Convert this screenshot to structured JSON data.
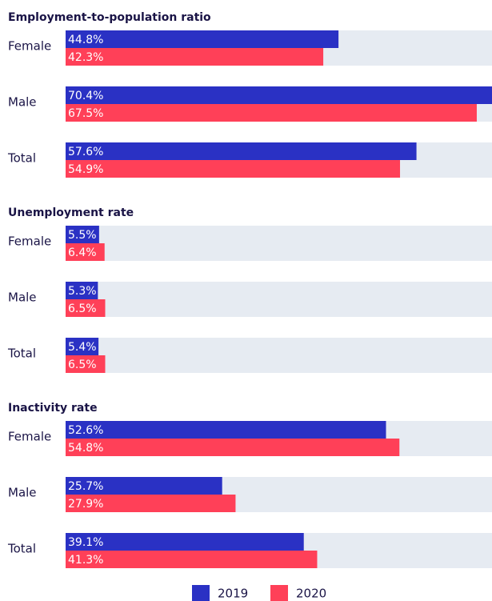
{
  "legend": [
    {
      "name": "2019",
      "color": "#2a31c4"
    },
    {
      "name": "2020",
      "color": "#ff4058"
    }
  ],
  "chart_data": [
    {
      "type": "bar",
      "title": "Employment-to-population ratio",
      "categories": [
        "Female",
        "Male",
        "Total"
      ],
      "xlim": [
        0,
        70
      ],
      "series": [
        {
          "values": [
            44.8,
            70.4,
            57.6
          ],
          "value_labels": [
            "44.8%",
            "70.4%",
            "57.6%"
          ]
        },
        {
          "values": [
            42.3,
            67.5,
            54.9
          ],
          "value_labels": [
            "42.3%",
            "67.5%",
            "54.9%"
          ]
        }
      ]
    },
    {
      "type": "bar",
      "title": "Unemployment rate",
      "categories": [
        "Female",
        "Male",
        "Total"
      ],
      "xlim": [
        0,
        70
      ],
      "series": [
        {
          "values": [
            5.5,
            5.3,
            5.4
          ],
          "value_labels": [
            "5.5%",
            "5.3%",
            "5.4%"
          ]
        },
        {
          "values": [
            6.4,
            6.5,
            6.5
          ],
          "value_labels": [
            "6.4%",
            "6.5%",
            "6.5%"
          ]
        }
      ]
    },
    {
      "type": "bar",
      "title": "Inactivity rate",
      "categories": [
        "Female",
        "Male",
        "Total"
      ],
      "xlim": [
        0,
        70
      ],
      "series": [
        {
          "values": [
            52.6,
            25.7,
            39.1
          ],
          "value_labels": [
            "52.6%",
            "25.7%",
            "39.1%"
          ]
        },
        {
          "values": [
            54.8,
            27.9,
            41.3
          ],
          "value_labels": [
            "54.8%",
            "27.9%",
            "41.3%"
          ]
        }
      ]
    }
  ]
}
